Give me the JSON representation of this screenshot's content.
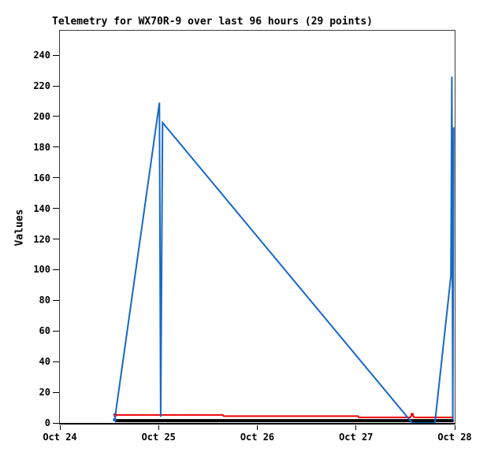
{
  "title": "Telemetry for WX70R-9 over last 96 hours (29 points)",
  "y_axis_label": "Values",
  "station": "WX70R-9",
  "points_count": 29,
  "time_span_hours": 96,
  "colors": {
    "series_blue": "#1568c8",
    "series_red": "#ee0000",
    "series_black": "#000000",
    "plot_border": "#3d3d3d",
    "axis": "#000000",
    "background": "#ffffff"
  },
  "chart_data": {
    "type": "line",
    "title": "Telemetry for WX70R-9 over last 96 hours (29 points)",
    "xlabel": "",
    "ylabel": "Values",
    "grid": false,
    "legend": "none",
    "xlim": [
      0,
      4
    ],
    "ylim": [
      0,
      256
    ],
    "x_unit": "days since Oct 24 00:00",
    "y_ticks": [
      0,
      20,
      40,
      60,
      80,
      100,
      120,
      140,
      160,
      180,
      200,
      220,
      240
    ],
    "x_ticks": [
      {
        "t": 0,
        "label": "Oct 24"
      },
      {
        "t": 1,
        "label": "Oct 25"
      },
      {
        "t": 2,
        "label": "Oct 26"
      },
      {
        "t": 3,
        "label": "Oct 27"
      },
      {
        "t": 4,
        "label": "Oct 28"
      }
    ],
    "series": [
      {
        "name": "channel-black",
        "color": "#000000",
        "width": 4,
        "points": [
          [
            0.56,
            1.5
          ],
          [
            3.99,
            1.5
          ]
        ],
        "markers": []
      },
      {
        "name": "channel-red",
        "color": "#ee0000",
        "width": 2,
        "points": [
          [
            0.56,
            5.2
          ],
          [
            1.65,
            5.2
          ],
          [
            1.66,
            4.4
          ],
          [
            3.02,
            4.4
          ],
          [
            3.03,
            3.6
          ],
          [
            3.55,
            3.6
          ],
          [
            3.57,
            5.4
          ],
          [
            3.59,
            3.6
          ],
          [
            3.99,
            3.6
          ]
        ],
        "markers": [
          [
            0.56,
            5.2
          ],
          [
            3.57,
            5.4
          ]
        ]
      },
      {
        "name": "channel-blue",
        "color": "#1568c8",
        "width": 2,
        "points": [
          [
            0.555,
            2
          ],
          [
            1.008,
            209
          ],
          [
            1.021,
            4
          ],
          [
            1.04,
            196
          ],
          [
            3.57,
            0
          ],
          [
            3.8,
            0
          ],
          [
            3.962,
            96
          ],
          [
            3.971,
            226
          ],
          [
            3.981,
            2
          ],
          [
            3.99,
            193
          ]
        ],
        "markers": [
          [
            0.555,
            2
          ]
        ]
      }
    ]
  }
}
